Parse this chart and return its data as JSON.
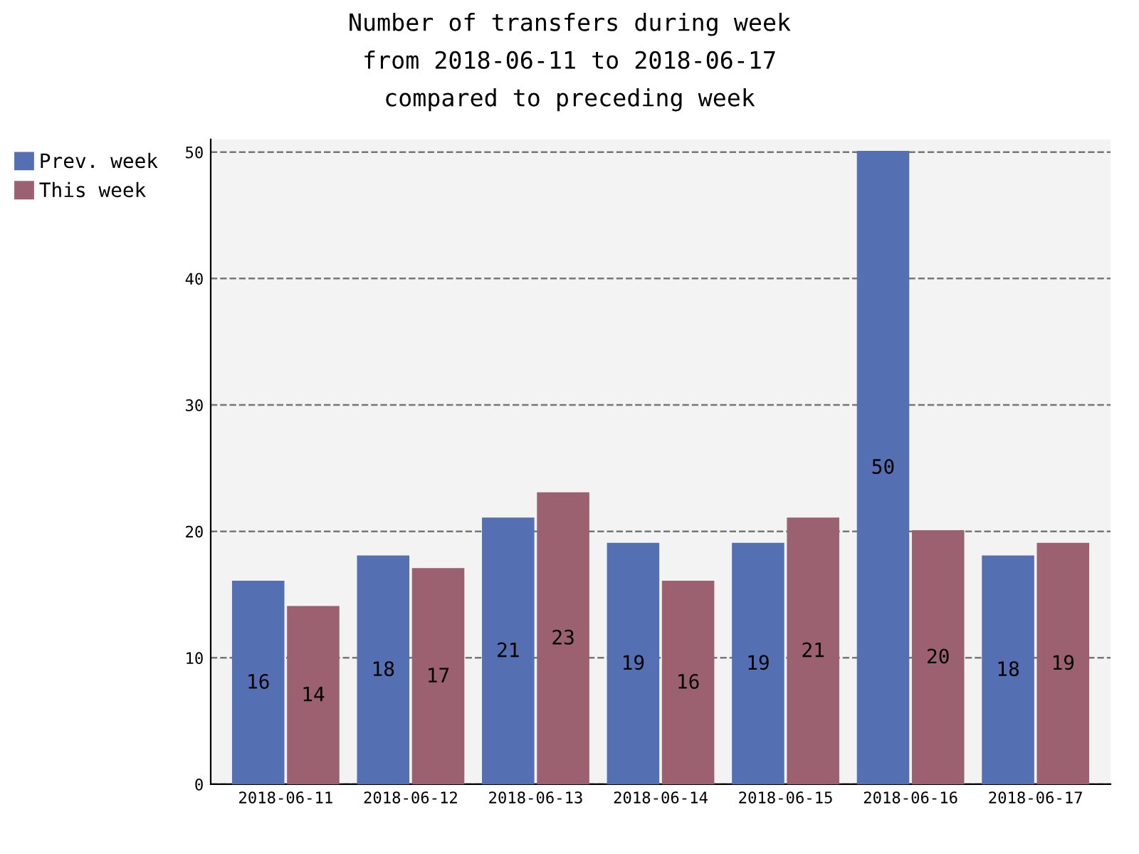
{
  "chart_data": {
    "type": "bar",
    "title": "Number of transfers during week\nfrom 2018-06-11 to 2018-06-17\ncompared to preceding week",
    "categories": [
      "2018-06-11",
      "2018-06-12",
      "2018-06-13",
      "2018-06-14",
      "2018-06-15",
      "2018-06-16",
      "2018-06-17"
    ],
    "series": [
      {
        "name": "Prev. week",
        "color": "#5470b3",
        "values": [
          16,
          18,
          21,
          19,
          19,
          50,
          18
        ]
      },
      {
        "name": "This week",
        "color": "#9b6170",
        "values": [
          14,
          17,
          23,
          16,
          21,
          20,
          19
        ]
      }
    ],
    "ylim": [
      0,
      51
    ],
    "yticks": [
      0,
      10,
      20,
      30,
      40,
      50
    ],
    "grid": "y",
    "legend": "top left",
    "data_labels": true
  }
}
